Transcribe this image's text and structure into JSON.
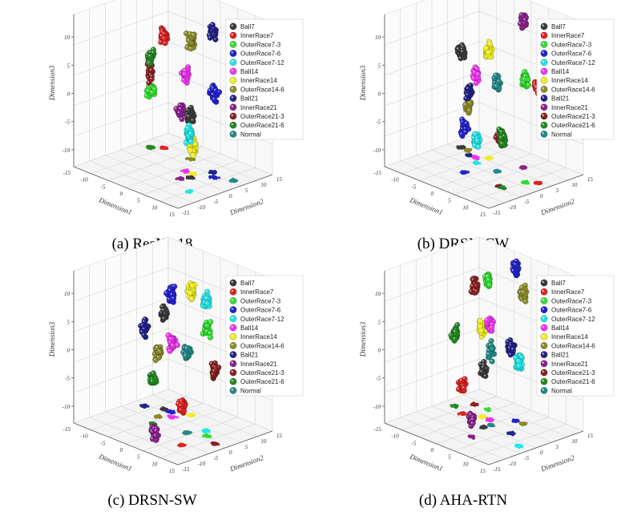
{
  "colors": {
    "Ball7": "#3a3a3a",
    "InnerRace7": "#dd2222",
    "OuterRace7-3": "#33dd33",
    "OuterRace7-6": "#2222cc",
    "OuterRace7-12": "#22e5e5",
    "Ball14": "#ee33ee",
    "InnerRace14": "#eeee22",
    "OuterRace14-6": "#8a8a2a",
    "Ball21": "#222288",
    "InnerRace21": "#8a228a",
    "OuterRace21-3": "#882222",
    "OuterRace21-6": "#228822",
    "Normal": "#228888"
  },
  "chart_data": [
    {
      "type": "scatter",
      "title": "(a) ResNet18",
      "xlabel": "Dimension1",
      "ylabel": "Dimension2",
      "zlabel": "Dimension3",
      "zticks": [
        "10",
        "5",
        "0",
        "-5",
        "-10"
      ],
      "xticks": [
        "-15",
        "-10",
        "-5",
        "0",
        "5",
        "10",
        "15"
      ],
      "yticks": [
        "-15",
        "-10",
        "-5",
        "0",
        "5",
        "10",
        "15"
      ],
      "legend_position": "top-right",
      "series": [
        {
          "name": "Ball7",
          "x": 5,
          "y": 0,
          "z": -2
        },
        {
          "name": "InnerRace7",
          "x": -10,
          "y": 8,
          "z": 7
        },
        {
          "name": "OuterRace7-3",
          "x": -12,
          "y": 6,
          "z": -3
        },
        {
          "name": "OuterRace7-6",
          "x": 8,
          "y": 4,
          "z": 2
        },
        {
          "name": "OuterRace7-12",
          "x": 10,
          "y": -6,
          "z": -3
        },
        {
          "name": "Ball14",
          "x": 2,
          "y": 2,
          "z": 4
        },
        {
          "name": "InnerRace14",
          "x": 4,
          "y": 2,
          "z": -8
        },
        {
          "name": "OuterRace14-6",
          "x": -2,
          "y": 8,
          "z": 8
        },
        {
          "name": "Ball21",
          "x": 6,
          "y": 6,
          "z": 12
        },
        {
          "name": "InnerRace21",
          "x": 4,
          "y": -2,
          "z": -1
        },
        {
          "name": "OuterRace21-3",
          "x": -12,
          "y": 6,
          "z": 0
        },
        {
          "name": "OuterRace21-6",
          "x": -12,
          "y": 6,
          "z": 3
        },
        {
          "name": "Normal",
          "x": 12,
          "y": 6,
          "z": 4
        }
      ]
    },
    {
      "type": "scatter",
      "title": "(b) DRSN-CW",
      "xlabel": "Dimension1",
      "ylabel": "Dimension2",
      "zlabel": "Dimension3",
      "zticks": [
        "10",
        "5",
        "0",
        "-5",
        "-10"
      ],
      "xticks": [
        "-15",
        "-10",
        "-5",
        "0",
        "5",
        "10",
        "15"
      ],
      "yticks": [
        "-15",
        "-10",
        "-5",
        "0",
        "5",
        "10",
        "15"
      ],
      "legend_position": "top-right",
      "series": [
        {
          "name": "Ball7",
          "x": -12,
          "y": 6,
          "z": 4
        },
        {
          "name": "InnerRace7",
          "x": 12,
          "y": 4,
          "z": 4
        },
        {
          "name": "OuterRace7-3",
          "x": 10,
          "y": 2,
          "z": 5
        },
        {
          "name": "OuterRace7-6",
          "x": -2,
          "y": -4,
          "z": -5
        },
        {
          "name": "OuterRace7-12",
          "x": -4,
          "y": 2,
          "z": -9
        },
        {
          "name": "Ball14",
          "x": -6,
          "y": 4,
          "z": 2
        },
        {
          "name": "InnerRace14",
          "x": -4,
          "y": 6,
          "z": 6
        },
        {
          "name": "OuterRace14-6",
          "x": -10,
          "y": 6,
          "z": -5
        },
        {
          "name": "Ball21",
          "x": -8,
          "y": 4,
          "z": -2
        },
        {
          "name": "InnerRace21",
          "x": 4,
          "y": 8,
          "z": 13
        },
        {
          "name": "OuterRace21-3",
          "x": 8,
          "y": -4,
          "z": -4
        },
        {
          "name": "OuterRace21-6",
          "x": 9,
          "y": -4,
          "z": -4
        },
        {
          "name": "Normal",
          "x": 2,
          "y": 2,
          "z": 3
        }
      ]
    },
    {
      "type": "scatter",
      "title": "(c) DRSN-SW",
      "xlabel": "Dimension1",
      "ylabel": "Dimension2",
      "zlabel": "Dimension3",
      "zticks": [
        "10",
        "5",
        "0",
        "-5",
        "-10"
      ],
      "xticks": [
        "-15",
        "-10",
        "-5",
        "0",
        "5",
        "10",
        "15"
      ],
      "yticks": [
        "-15",
        "-10",
        "-5",
        "0",
        "5",
        "10",
        "15"
      ],
      "legend_position": "top-right",
      "series": [
        {
          "name": "Ball7",
          "x": -8,
          "y": 6,
          "z": 4
        },
        {
          "name": "InnerRace7",
          "x": 8,
          "y": -6,
          "z": -6
        },
        {
          "name": "OuterRace7-3",
          "x": 8,
          "y": 2,
          "z": 6
        },
        {
          "name": "OuterRace7-6",
          "x": -6,
          "y": 6,
          "z": 8
        },
        {
          "name": "OuterRace7-12",
          "x": 6,
          "y": 4,
          "z": 10
        },
        {
          "name": "Ball14",
          "x": -4,
          "y": 4,
          "z": 0
        },
        {
          "name": "InnerRace14",
          "x": -2,
          "y": 8,
          "z": 9
        },
        {
          "name": "OuterRace14-6",
          "x": -6,
          "y": 2,
          "z": -2
        },
        {
          "name": "Ball21",
          "x": -12,
          "y": 4,
          "z": 1
        },
        {
          "name": "InnerRace21",
          "x": 2,
          "y": -8,
          "z": -12
        },
        {
          "name": "OuterRace21-3",
          "x": 12,
          "y": 0,
          "z": 0
        },
        {
          "name": "OuterRace21-6",
          "x": -4,
          "y": -2,
          "z": -5
        },
        {
          "name": "Normal",
          "x": 4,
          "y": 0,
          "z": 1
        }
      ]
    },
    {
      "type": "scatter",
      "title": "(d) AHA-RTN",
      "xlabel": "Dimension1",
      "ylabel": "Dimension2",
      "zlabel": "Dimension3",
      "zticks": [
        "10",
        "5",
        "0",
        "-5",
        "-10"
      ],
      "xticks": [
        "-15",
        "-10",
        "-5",
        "0",
        "5",
        "10",
        "15"
      ],
      "yticks": [
        "-15",
        "-10",
        "-5",
        "0",
        "5",
        "10",
        "15"
      ],
      "legend_position": "top-right",
      "series": [
        {
          "name": "Ball7",
          "x": 0,
          "y": 0,
          "z": -3
        },
        {
          "name": "InnerRace7",
          "x": -8,
          "y": 2,
          "z": -8
        },
        {
          "name": "OuterRace7-3",
          "x": -6,
          "y": 8,
          "z": 10
        },
        {
          "name": "OuterRace7-6",
          "x": 2,
          "y": 8,
          "z": 14
        },
        {
          "name": "OuterRace7-12",
          "x": 12,
          "y": -2,
          "z": 2
        },
        {
          "name": "Ball14",
          "x": -2,
          "y": 4,
          "z": 4
        },
        {
          "name": "InnerRace14",
          "x": -4,
          "y": 4,
          "z": 3
        },
        {
          "name": "OuterRace14-6",
          "x": 4,
          "y": 8,
          "z": 10
        },
        {
          "name": "Ball21",
          "x": 6,
          "y": 2,
          "z": 2
        },
        {
          "name": "InnerRace21",
          "x": 2,
          "y": -6,
          "z": -10
        },
        {
          "name": "OuterRace21-3",
          "x": -10,
          "y": 8,
          "z": 8
        },
        {
          "name": "OuterRace21-6",
          "x": -12,
          "y": 4,
          "z": 0
        },
        {
          "name": "Normal",
          "x": 0,
          "y": 2,
          "z": 0
        }
      ]
    }
  ]
}
